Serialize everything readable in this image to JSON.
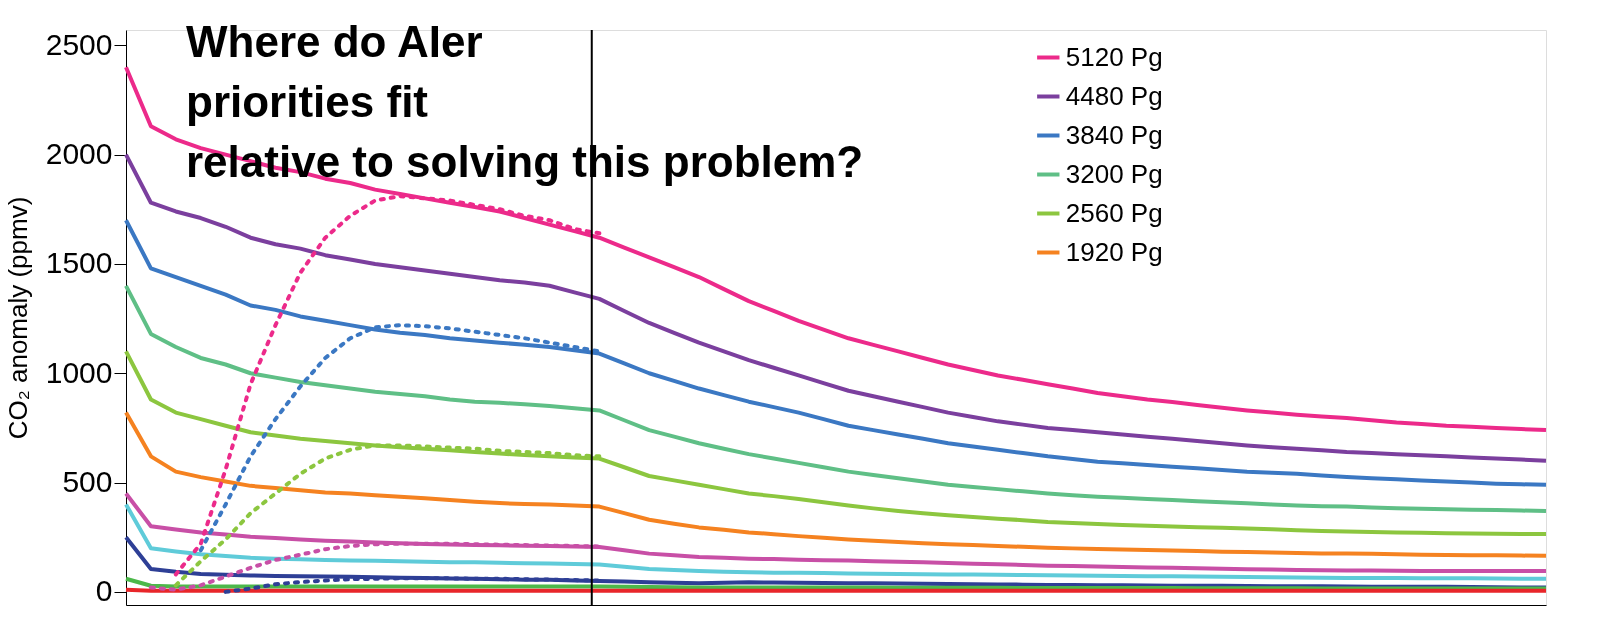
{
  "chart_data": {
    "type": "line",
    "ylabel": "CO₂ anomaly (ppmv)",
    "annotations": [
      "Where do AIer",
      "priorities fit",
      "relative to solving this problem?"
    ],
    "categories": [
      null,
      null,
      null,
      null,
      null,
      null,
      null,
      null,
      null,
      null,
      null,
      null,
      null,
      null,
      null,
      null,
      null,
      null,
      null,
      null,
      null,
      null,
      null,
      null,
      null,
      null,
      null,
      null,
      null,
      null,
      null,
      null,
      null,
      null,
      null,
      null,
      null,
      null,
      null,
      null,
      null,
      null,
      null,
      null,
      null,
      null,
      null,
      null,
      null,
      null,
      null,
      null,
      null,
      null,
      null,
      null,
      null,
      null
    ],
    "ylim": [
      -60,
      2570
    ],
    "yticks": [
      0,
      500,
      1000,
      1500,
      2000,
      2500
    ],
    "tick_labels": "y",
    "grid": false,
    "legend": "top",
    "marker": "none",
    "line_style": "solid",
    "series": [
      {
        "name": "5120 Pg",
        "color": "#ec2a8a",
        "values": [
          2400,
          2130,
          2070,
          2030,
          2000,
          1970,
          1940,
          1920,
          1890,
          1870,
          1840,
          1820,
          1800,
          1780,
          1760,
          1740,
          1710,
          1680,
          1650,
          1620,
          1575,
          1530,
          1485,
          1440,
          1385,
          1330,
          1285,
          1240,
          1200,
          1160,
          1130,
          1100,
          1070,
          1040,
          1015,
          990,
          970,
          950,
          930,
          910,
          895,
          880,
          868,
          855,
          842,
          830,
          820,
          810,
          802,
          795,
          785,
          775,
          768,
          760,
          755,
          750,
          745,
          740
        ]
      },
      {
        "name": "4480 Pg",
        "color": "#7b3f9e",
        "values": [
          2000,
          1780,
          1740,
          1710,
          1670,
          1620,
          1590,
          1570,
          1540,
          1520,
          1500,
          1485,
          1470,
          1455,
          1440,
          1425,
          1415,
          1400,
          1370,
          1340,
          1285,
          1230,
          1185,
          1140,
          1100,
          1060,
          1025,
          990,
          955,
          920,
          895,
          870,
          845,
          820,
          800,
          780,
          765,
          750,
          740,
          730,
          720,
          710,
          700,
          690,
          680,
          670,
          662,
          655,
          648,
          640,
          635,
          630,
          625,
          620,
          615,
          610,
          605,
          600
        ]
      },
      {
        "name": "3840 Pg",
        "color": "#3b78c3",
        "values": [
          1700,
          1480,
          1440,
          1400,
          1360,
          1310,
          1290,
          1260,
          1240,
          1220,
          1200,
          1185,
          1175,
          1160,
          1150,
          1140,
          1130,
          1120,
          1105,
          1090,
          1045,
          1000,
          965,
          930,
          900,
          870,
          845,
          820,
          790,
          760,
          740,
          720,
          700,
          680,
          665,
          650,
          635,
          620,
          608,
          595,
          588,
          580,
          572,
          565,
          558,
          550,
          545,
          540,
          532,
          525,
          520,
          515,
          510,
          505,
          500,
          495,
          492,
          490
        ]
      },
      {
        "name": "3200 Pg",
        "color": "#5fbf86",
        "values": [
          1400,
          1180,
          1120,
          1070,
          1040,
          1000,
          980,
          960,
          945,
          930,
          915,
          905,
          895,
          880,
          870,
          865,
          858,
          850,
          840,
          830,
          785,
          740,
          710,
          680,
          655,
          630,
          610,
          590,
          570,
          550,
          535,
          520,
          505,
          490,
          480,
          470,
          460,
          450,
          442,
          435,
          430,
          425,
          420,
          415,
          410,
          405,
          400,
          395,
          392,
          390,
          386,
          383,
          380,
          378,
          376,
          374,
          372,
          370
        ]
      },
      {
        "name": "2560 Pg",
        "color": "#8cc63f",
        "values": [
          1100,
          880,
          820,
          790,
          760,
          730,
          715,
          700,
          690,
          680,
          670,
          662,
          655,
          648,
          640,
          633,
          626,
          620,
          615,
          610,
          570,
          530,
          510,
          490,
          470,
          450,
          438,
          425,
          410,
          395,
          382,
          370,
          360,
          350,
          342,
          335,
          328,
          320,
          315,
          310,
          306,
          302,
          299,
          296,
          293,
          290,
          286,
          282,
          279,
          276,
          274,
          272,
          270,
          268,
          267,
          266,
          265,
          265
        ]
      },
      {
        "name": "1920 Pg",
        "color": "#f58220",
        "values": [
          820,
          620,
          550,
          525,
          505,
          485,
          475,
          465,
          455,
          450,
          442,
          435,
          428,
          420,
          412,
          406,
          402,
          400,
          395,
          390,
          360,
          330,
          312,
          295,
          284,
          272,
          264,
          255,
          248,
          240,
          234,
          228,
          223,
          218,
          214,
          210,
          206,
          202,
          199,
          196,
          194,
          191,
          189,
          187,
          184,
          182,
          180,
          178,
          176,
          175,
          174,
          172,
          170,
          169,
          168,
          167,
          166,
          165
        ]
      },
      {
        "color": "#c84fa6",
        "values": [
          450,
          300,
          285,
          272,
          262,
          252,
          246,
          240,
          234,
          230,
          226,
          222,
          219,
          217,
          215,
          213,
          211,
          210,
          208,
          205,
          190,
          175,
          168,
          160,
          156,
          152,
          150,
          147,
          145,
          143,
          140,
          138,
          135,
          132,
          129,
          126,
          123,
          120,
          118,
          116,
          114,
          112,
          110,
          108,
          106,
          104,
          102,
          100,
          99,
          98,
          98,
          97,
          96,
          96,
          96,
          95,
          95,
          95
        ]
      },
      {
        "color": "#5fcbd9",
        "values": [
          400,
          200,
          185,
          172,
          164,
          156,
          152,
          149,
          146,
          144,
          142,
          140,
          138,
          136,
          135,
          133,
          131,
          130,
          128,
          125,
          115,
          105,
          100,
          95,
          92,
          90,
          88,
          87,
          86,
          84,
          83,
          82,
          81,
          80,
          79,
          78,
          77,
          76,
          75,
          74,
          73,
          72,
          71,
          70,
          69,
          68,
          67,
          66,
          65,
          64,
          64,
          63,
          62,
          62,
          62,
          61,
          60,
          60
        ]
      },
      {
        "color": "#2e3f96",
        "values": [
          250,
          105,
          92,
          82,
          78,
          75,
          73,
          71,
          70,
          69,
          67,
          65,
          63,
          61,
          60,
          58,
          56,
          55,
          52,
          50,
          47,
          44,
          42,
          40,
          42,
          44,
          43,
          42,
          41,
          40,
          39,
          38,
          37,
          36,
          35,
          34,
          33,
          32,
          31,
          30,
          30,
          29,
          28,
          28,
          28,
          27,
          26,
          26,
          26,
          25,
          24,
          24,
          24,
          23,
          22,
          21,
          20,
          20
        ]
      },
      {
        "color": "#4cb84a",
        "values": [
          60,
          28,
          25,
          25,
          25,
          25,
          25,
          25,
          25,
          25,
          25,
          25,
          25,
          25,
          25,
          25,
          25,
          25,
          25,
          25,
          24,
          22,
          21,
          20,
          20,
          20,
          20,
          20,
          20,
          20,
          20,
          19,
          19,
          19,
          19,
          19,
          18,
          18,
          18,
          18,
          18,
          18,
          18,
          17,
          17,
          17,
          17,
          17,
          16,
          16,
          16,
          16,
          16,
          15,
          15,
          15,
          15,
          15
        ]
      },
      {
        "color": "#e8262a",
        "values": [
          10,
          5,
          5,
          5,
          5,
          5,
          5,
          5,
          5,
          5,
          5,
          5,
          5,
          5,
          5,
          5,
          5,
          5,
          5,
          5,
          5,
          5,
          5,
          5,
          5,
          5,
          5,
          5,
          5,
          5,
          5,
          5,
          5,
          5,
          5,
          5,
          5,
          5,
          5,
          5,
          5,
          5,
          5,
          5,
          5,
          5,
          5,
          5,
          5,
          5,
          5,
          5,
          5,
          5,
          5,
          5,
          5,
          5
        ]
      },
      {
        "color": "#ec2a8a",
        "line_style": "dotted",
        "values": [
          null,
          null,
          80,
          220,
          560,
          950,
          1220,
          1460,
          1620,
          1720,
          1790,
          1810,
          1800,
          1790,
          1770,
          1750,
          1720,
          1700,
          1660,
          1640,
          null,
          null,
          null,
          null,
          null,
          null,
          null,
          null,
          null,
          null,
          null,
          null,
          null,
          null,
          null,
          null,
          null,
          null,
          null,
          null,
          null,
          null,
          null,
          null,
          null,
          null,
          null,
          null,
          null,
          null,
          null,
          null,
          null,
          null,
          null,
          null,
          null,
          null
        ]
      },
      {
        "color": "#3b78c3",
        "line_style": "dotted",
        "values": [
          null,
          null,
          null,
          190,
          400,
          620,
          790,
          940,
          1070,
          1160,
          1210,
          1220,
          1215,
          1205,
          1190,
          1175,
          1160,
          1140,
          1120,
          1100,
          null,
          null,
          null,
          null,
          null,
          null,
          null,
          null,
          null,
          null,
          null,
          null,
          null,
          null,
          null,
          null,
          null,
          null,
          null,
          null,
          null,
          null,
          null,
          null,
          null,
          null,
          null,
          null,
          null,
          null,
          null,
          null,
          null,
          null,
          null,
          null,
          null,
          null
        ]
      },
      {
        "color": "#8cc63f",
        "line_style": "dotted",
        "values": [
          null,
          null,
          30,
          140,
          240,
          360,
          450,
          540,
          610,
          650,
          670,
          670,
          665,
          660,
          655,
          645,
          640,
          635,
          625,
          620,
          null,
          null,
          null,
          null,
          null,
          null,
          null,
          null,
          null,
          null,
          null,
          null,
          null,
          null,
          null,
          null,
          null,
          null,
          null,
          null,
          null,
          null,
          null,
          null,
          null,
          null,
          null,
          null,
          null,
          null,
          null,
          null,
          null,
          null,
          null,
          null,
          null,
          null
        ]
      },
      {
        "color": "#c84fa6",
        "line_style": "dotted",
        "values": [
          null,
          20,
          10,
          30,
          70,
          110,
          146,
          170,
          195,
          210,
          218,
          220,
          220,
          220,
          218,
          216,
          214,
          212,
          210,
          208,
          null,
          null,
          null,
          null,
          null,
          null,
          null,
          null,
          null,
          null,
          null,
          null,
          null,
          null,
          null,
          null,
          null,
          null,
          null,
          null,
          null,
          null,
          null,
          null,
          null,
          null,
          null,
          null,
          null,
          null,
          null,
          null,
          null,
          null,
          null,
          null,
          null,
          null
        ]
      },
      {
        "color": "#2e3f96",
        "line_style": "dotted",
        "values": [
          null,
          null,
          null,
          null,
          0,
          15,
          35,
          45,
          52,
          58,
          60,
          62,
          62,
          62,
          60,
          60,
          58,
          56,
          54,
          52,
          null,
          null,
          null,
          null,
          null,
          null,
          null,
          null,
          null,
          null,
          null,
          null,
          null,
          null,
          null,
          null,
          null,
          null,
          null,
          null,
          null,
          null,
          null,
          null,
          null,
          null,
          null,
          null,
          null,
          null,
          null,
          null,
          null,
          null,
          null,
          null,
          null,
          null
        ]
      }
    ]
  }
}
